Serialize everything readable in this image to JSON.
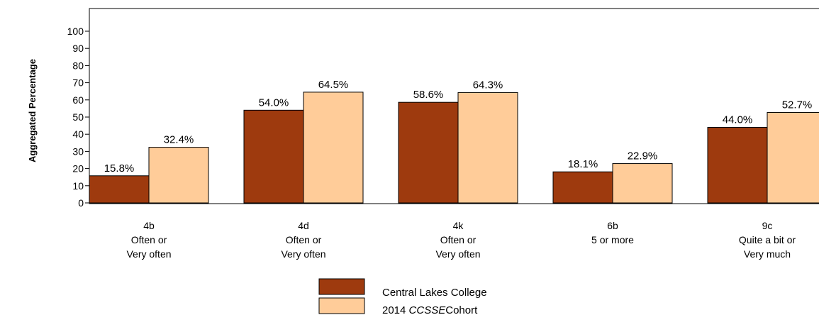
{
  "chart_data": {
    "type": "bar",
    "ylabel": "Aggregated Percentage",
    "ylim": [
      0,
      100
    ],
    "yticks": [
      0,
      10,
      20,
      30,
      40,
      50,
      60,
      70,
      80,
      90,
      100
    ],
    "categories": [
      [
        "4b",
        "Often or",
        "Very often"
      ],
      [
        "4d",
        "Often or",
        "Very often"
      ],
      [
        "4k",
        "Often or",
        "Very often"
      ],
      [
        "6b",
        "5 or more"
      ],
      [
        "9c",
        "Quite a bit or",
        "Very much"
      ]
    ],
    "series": [
      {
        "name": "Central Lakes College",
        "color": "#9E3A0E",
        "values": [
          15.8,
          54.0,
          58.6,
          18.1,
          44.0
        ],
        "labels": [
          "15.8%",
          "54.0%",
          "58.6%",
          "18.1%",
          "44.0%"
        ]
      },
      {
        "name": "2014 CCSSE Cohort",
        "color": "#FFCC99",
        "values": [
          32.4,
          64.5,
          64.3,
          22.9,
          52.7
        ],
        "labels": [
          "32.4%",
          "64.5%",
          "64.3%",
          "22.9%",
          "52.7%"
        ]
      }
    ],
    "legend": {
      "placement": "bottom-center",
      "items": [
        {
          "text": "Central Lakes College"
        },
        {
          "text_prefix": "2014 ",
          "text_italic": "CCSSE",
          "text_suffix": "Cohort"
        }
      ]
    },
    "grid": false
  }
}
